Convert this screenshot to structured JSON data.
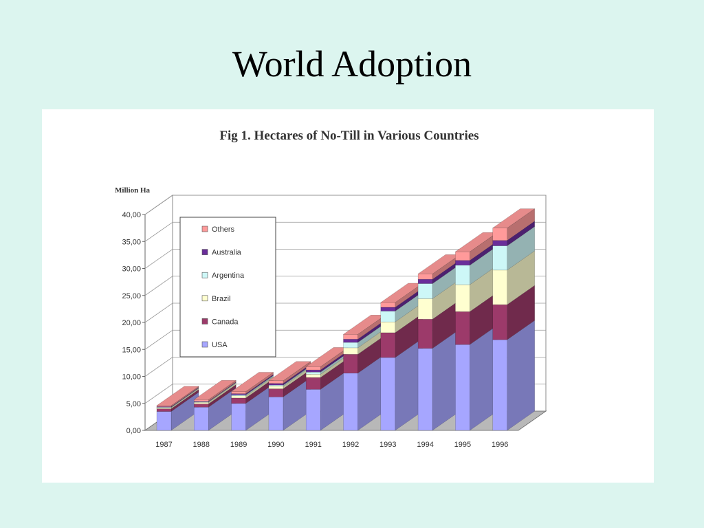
{
  "slide": {
    "title": "World Adoption"
  },
  "chart_data": {
    "type": "bar",
    "stacked": true,
    "three_d": true,
    "title": "Fig 1. Hectares of No-Till in Various Countries",
    "ylabel": "Million Ha",
    "xlabel": "",
    "categories": [
      "1987",
      "1988",
      "1989",
      "1990",
      "1991",
      "1992",
      "1993",
      "1994",
      "1995",
      "1996"
    ],
    "ylim": [
      0,
      40
    ],
    "yticks": [
      "0,00",
      "5,00",
      "10,00",
      "15,00",
      "20,00",
      "25,00",
      "30,00",
      "35,00",
      "40,00"
    ],
    "grid": true,
    "legend_position": "top-left",
    "series": [
      {
        "name": "USA",
        "color": "#a6a6ff",
        "values": [
          3.5,
          4.3,
          5.0,
          6.2,
          7.6,
          10.6,
          13.5,
          15.2,
          15.9,
          16.8
        ]
      },
      {
        "name": "Canada",
        "color": "#9c3a6a",
        "values": [
          0.5,
          0.6,
          1.0,
          1.5,
          2.2,
          3.5,
          4.6,
          5.4,
          6.1,
          6.5
        ]
      },
      {
        "name": "Brazil",
        "color": "#ffffd0",
        "values": [
          0.2,
          0.3,
          0.4,
          0.5,
          0.6,
          1.2,
          2.0,
          3.8,
          5.0,
          6.4
        ]
      },
      {
        "name": "Argentina",
        "color": "#cdf7f7",
        "values": [
          0.1,
          0.1,
          0.2,
          0.2,
          0.4,
          1.0,
          2.0,
          2.8,
          3.6,
          4.5
        ]
      },
      {
        "name": "Australia",
        "color": "#6a2d9a",
        "values": [
          0.1,
          0.1,
          0.2,
          0.3,
          0.4,
          0.6,
          0.7,
          0.8,
          0.9,
          1.0
        ]
      },
      {
        "name": "Others",
        "color": "#ff9a9a",
        "values": [
          0.2,
          0.3,
          0.4,
          0.5,
          0.6,
          0.9,
          0.9,
          1.0,
          1.6,
          2.3
        ]
      }
    ]
  }
}
